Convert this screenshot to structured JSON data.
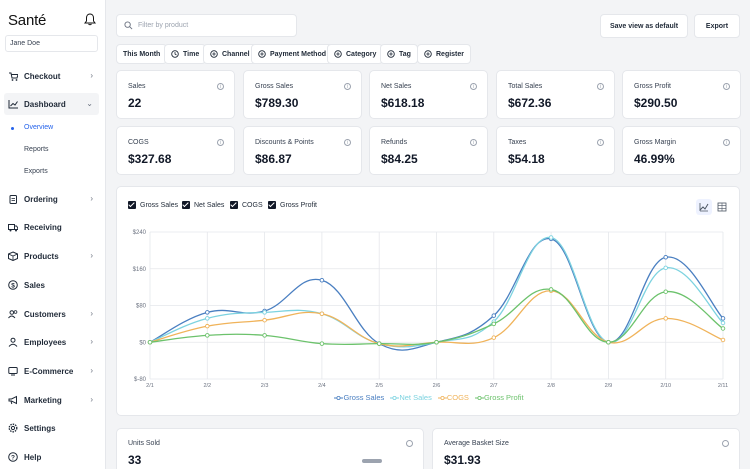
{
  "app": {
    "brand": "Santé",
    "user": "Jane Doe"
  },
  "sidebar": {
    "items": [
      {
        "label": "Checkout",
        "icon": "cart-icon",
        "chevron": true
      },
      {
        "label": "Dashboard",
        "icon": "chart-line-icon",
        "chevron": true,
        "expanded": true
      },
      {
        "label": "Ordering",
        "icon": "clipboard-icon",
        "chevron": true
      },
      {
        "label": "Receiving",
        "icon": "truck-icon",
        "chevron": false
      },
      {
        "label": "Products",
        "icon": "box-icon",
        "chevron": true
      },
      {
        "label": "Sales",
        "icon": "dollar-icon",
        "chevron": false
      },
      {
        "label": "Customers",
        "icon": "users-icon",
        "chevron": true
      },
      {
        "label": "Employees",
        "icon": "employee-icon",
        "chevron": true
      },
      {
        "label": "E-Commerce",
        "icon": "globe-icon",
        "chevron": true
      },
      {
        "label": "Marketing",
        "icon": "megaphone-icon",
        "chevron": true
      },
      {
        "label": "Settings",
        "icon": "gear-icon",
        "chevron": false
      },
      {
        "label": "Help",
        "icon": "help-icon",
        "chevron": false
      }
    ],
    "subitems": [
      {
        "label": "Overview",
        "active": true
      },
      {
        "label": "Reports",
        "active": false
      },
      {
        "label": "Exports",
        "active": false
      }
    ]
  },
  "topbar": {
    "search_placeholder": "Filter by product",
    "save_view": "Save view as default",
    "export": "Export"
  },
  "filters": [
    "This Month",
    "Time",
    "Channel",
    "Payment Method",
    "Category",
    "Tag",
    "Register"
  ],
  "stats": [
    {
      "label": "Sales",
      "value": "22"
    },
    {
      "label": "Gross Sales",
      "value": "$789.30"
    },
    {
      "label": "Net Sales",
      "value": "$618.18"
    },
    {
      "label": "Total Sales",
      "value": "$672.36"
    },
    {
      "label": "Gross Profit",
      "value": "$290.50"
    },
    {
      "label": "COGS",
      "value": "$327.68"
    },
    {
      "label": "Discounts & Points",
      "value": "$86.87"
    },
    {
      "label": "Refunds",
      "value": "$84.25"
    },
    {
      "label": "Taxes",
      "value": "$54.18"
    },
    {
      "label": "Gross Margin",
      "value": "46.99%"
    }
  ],
  "chart_toggles": [
    "Gross Sales",
    "Net Sales",
    "COGS",
    "Gross Profit"
  ],
  "chart_data": {
    "type": "line",
    "x": [
      "2/1",
      "2/2",
      "2/3",
      "2/4",
      "2/5",
      "2/6",
      "2/7",
      "2/8",
      "2/9",
      "2/10",
      "2/11"
    ],
    "ylim": [
      -80,
      240
    ],
    "yticks": [
      "$240",
      "$160",
      "$80",
      "$0",
      "$-80"
    ],
    "ytick_values": [
      240,
      160,
      80,
      0,
      -80
    ],
    "grid": true,
    "legend_position": "bottom",
    "series": [
      {
        "name": "Gross Sales",
        "color": "#4a7fc1",
        "values": [
          0,
          65,
          68,
          135,
          -3,
          0,
          58,
          225,
          0,
          185,
          52
        ]
      },
      {
        "name": "Net Sales",
        "color": "#7dd3e0",
        "values": [
          0,
          52,
          65,
          62,
          -3,
          0,
          45,
          228,
          0,
          162,
          42
        ]
      },
      {
        "name": "COGS",
        "color": "#f0b35a",
        "values": [
          0,
          35,
          48,
          62,
          -3,
          0,
          10,
          112,
          0,
          52,
          5
        ]
      },
      {
        "name": "Gross Profit",
        "color": "#6cc26c",
        "values": [
          0,
          15,
          15,
          -3,
          -3,
          0,
          40,
          115,
          0,
          110,
          30
        ]
      }
    ]
  },
  "bottom_cards": [
    {
      "label": "Units Sold",
      "value": "33"
    },
    {
      "label": "Average Basket Size",
      "value": "$31.93"
    }
  ]
}
